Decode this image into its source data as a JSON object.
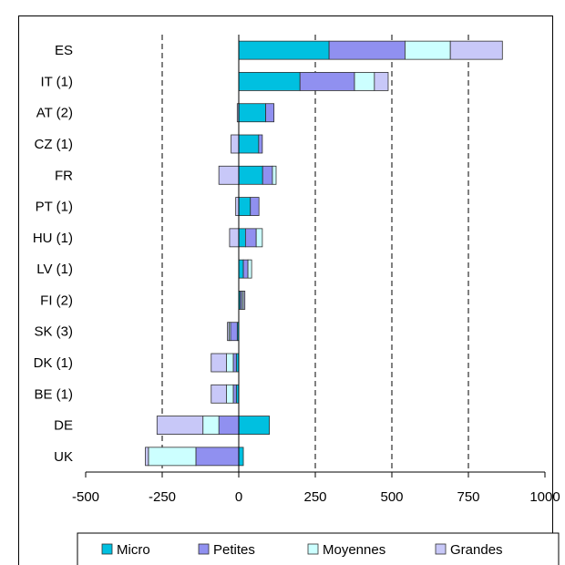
{
  "chart_data": {
    "type": "bar",
    "orientation": "horizontal",
    "stacked": "diverging",
    "title": "",
    "xlabel": "",
    "ylabel": "",
    "xlim": [
      -500,
      1000
    ],
    "xticks": [
      -500,
      -250,
      0,
      250,
      500,
      750,
      1000
    ],
    "xtick_labels": [
      "-500",
      "-250",
      "0",
      "250",
      "500",
      "750",
      "1000"
    ],
    "grid": "vertical dashed at 250-unit steps",
    "legend_position": "bottom",
    "categories": [
      "ES",
      "IT (1)",
      "AT (2)",
      "CZ (1)",
      "FR",
      "PT (1)",
      "HU (1)",
      "LV (1)",
      "FI (2)",
      "SK (3)",
      "DK (1)",
      "BE (1)",
      "DE",
      "UK"
    ],
    "series": [
      {
        "name": "Micro",
        "color": "#00c0e0",
        "values": [
          295,
          200,
          88,
          65,
          78,
          38,
          22,
          15,
          5,
          -5,
          -8,
          -8,
          100,
          15
        ]
      },
      {
        "name": "Petites",
        "color": "#9090f0",
        "values": [
          248,
          178,
          27,
          12,
          32,
          28,
          35,
          15,
          5,
          -22,
          -10,
          -10,
          -65,
          -140
        ]
      },
      {
        "name": "Moyennes",
        "color": "#ccffff",
        "values": [
          148,
          65,
          0,
          0,
          12,
          0,
          20,
          12,
          5,
          -5,
          -22,
          -22,
          -52,
          -155
        ]
      },
      {
        "name": "Grandes",
        "color": "#c8c8f8",
        "values": [
          170,
          45,
          -5,
          -25,
          -65,
          -10,
          -30,
          0,
          5,
          -5,
          -50,
          -50,
          -150,
          -10
        ]
      }
    ]
  }
}
